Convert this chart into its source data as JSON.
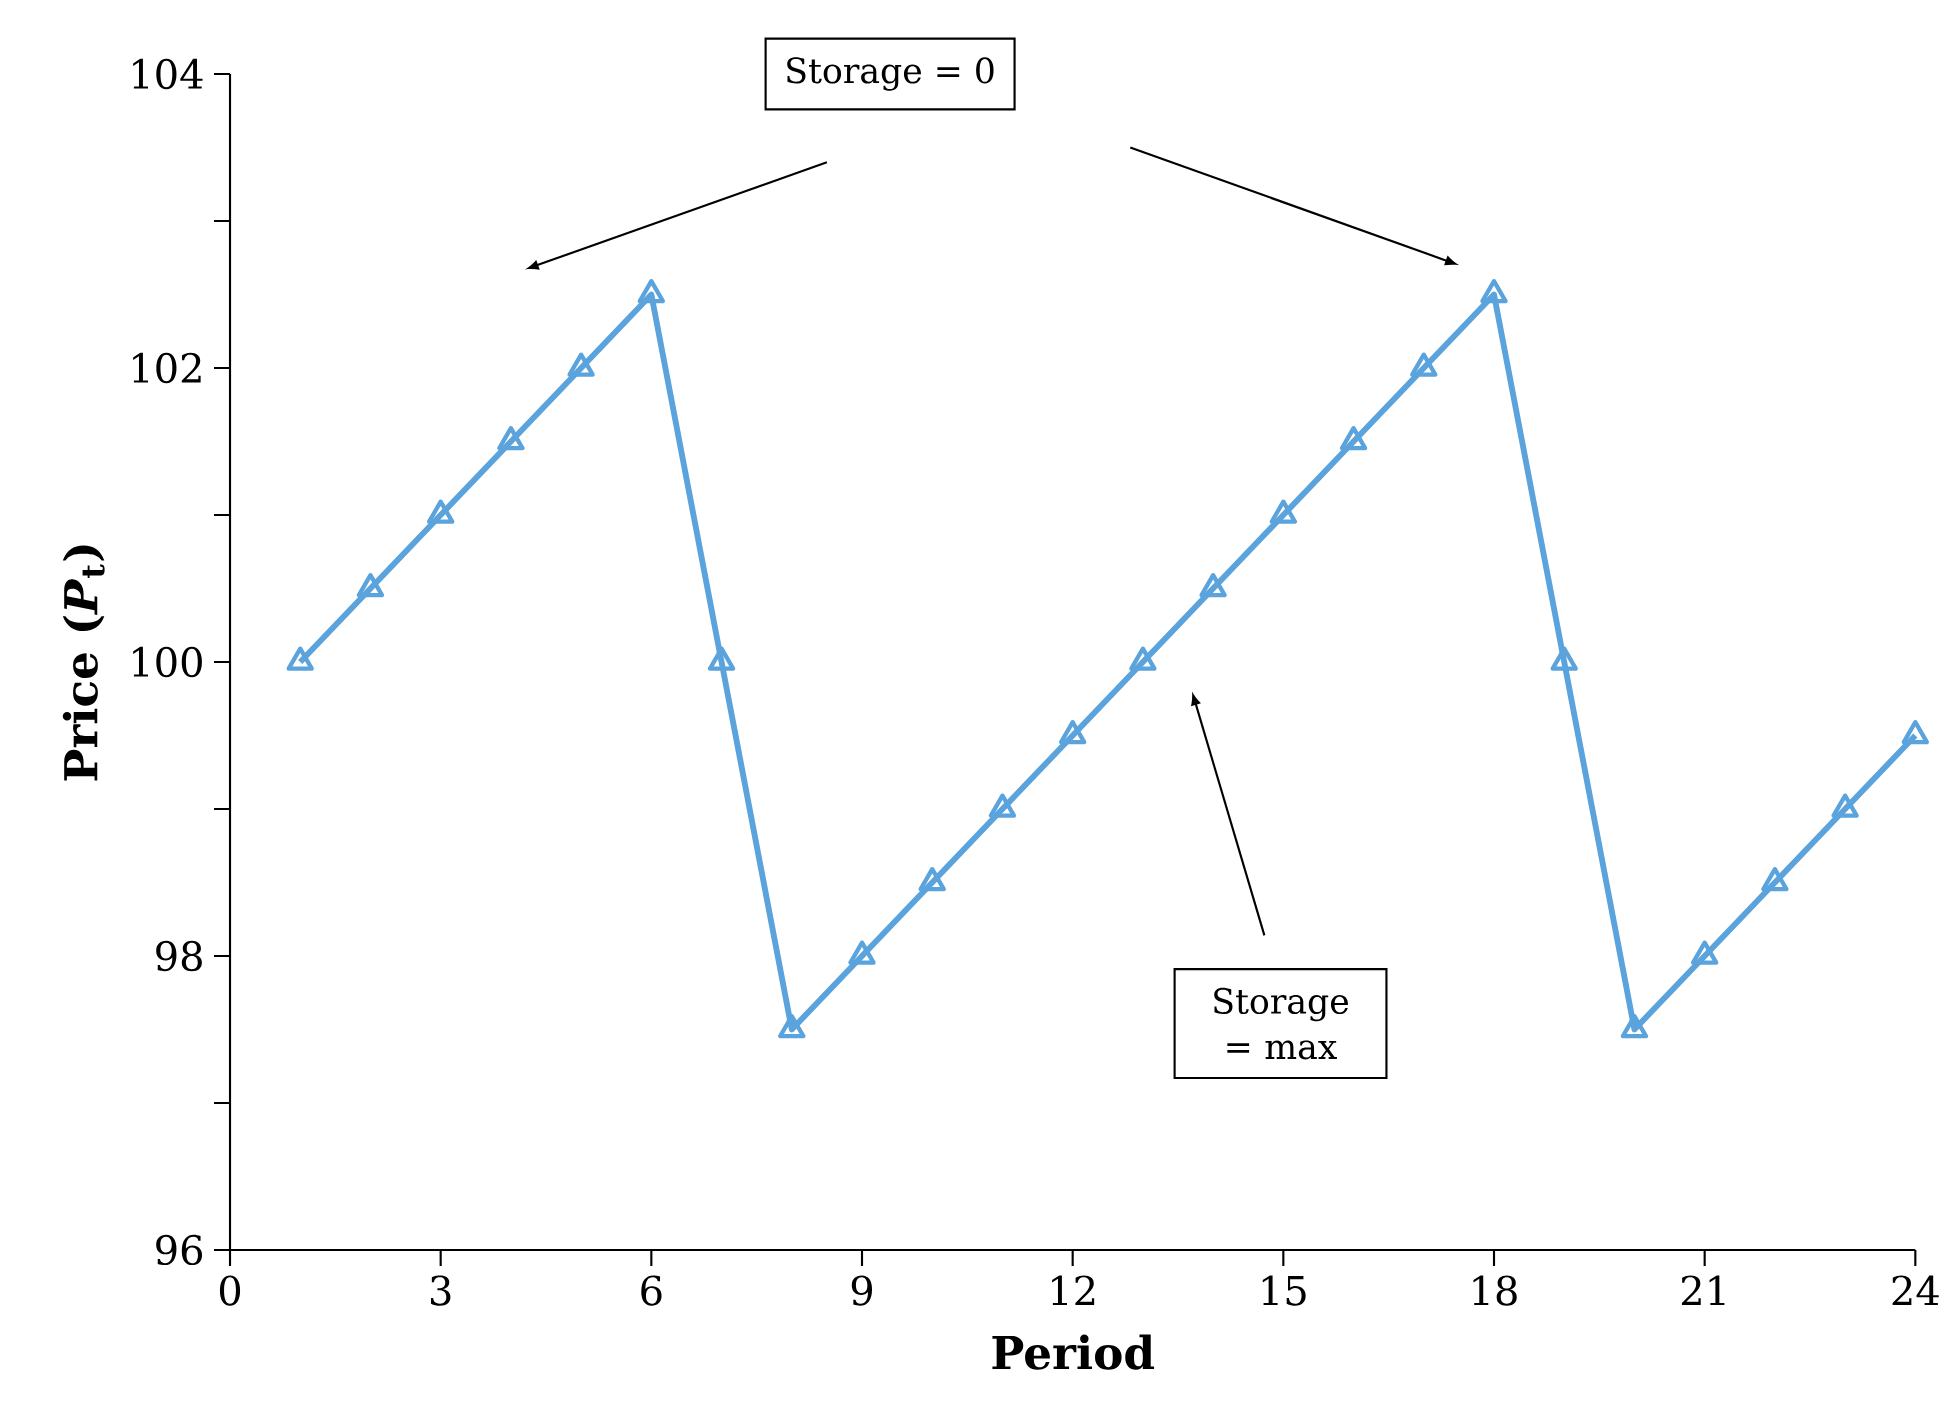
{
  "chart_data": {
    "type": "line",
    "xlabel": "Period",
    "ylabel": "Price (*P*$_{t}$)",
    "x": [
      1,
      2,
      3,
      4,
      5,
      6,
      7,
      8,
      9,
      10,
      11,
      12,
      13,
      14,
      15,
      16,
      17,
      18,
      19,
      20,
      21,
      22,
      23,
      24
    ],
    "values": [
      100,
      100.5,
      101,
      101.5,
      102,
      102.5,
      100,
      97.5,
      98,
      98.5,
      99,
      99.5,
      100,
      100.5,
      101,
      101.5,
      102,
      102.5,
      100,
      97.5,
      98,
      98.5,
      99,
      99.5
    ],
    "color": "#5ba3dc",
    "marker": "triangle",
    "grid": false,
    "xlim": [
      0,
      24
    ],
    "xticks": [
      0,
      3,
      6,
      9,
      12,
      15,
      18,
      21,
      24
    ],
    "ylim": [
      96,
      104
    ],
    "yticks": [
      96,
      {
        "value": 97,
        "label": null
      },
      98,
      {
        "value": 99,
        "label": null
      },
      100,
      {
        "value": 101,
        "label": null
      },
      102,
      {
        "value": 103,
        "label": null
      },
      104
    ],
    "annotations": [
      "Storage = 0",
      "Storage = max"
    ]
  }
}
